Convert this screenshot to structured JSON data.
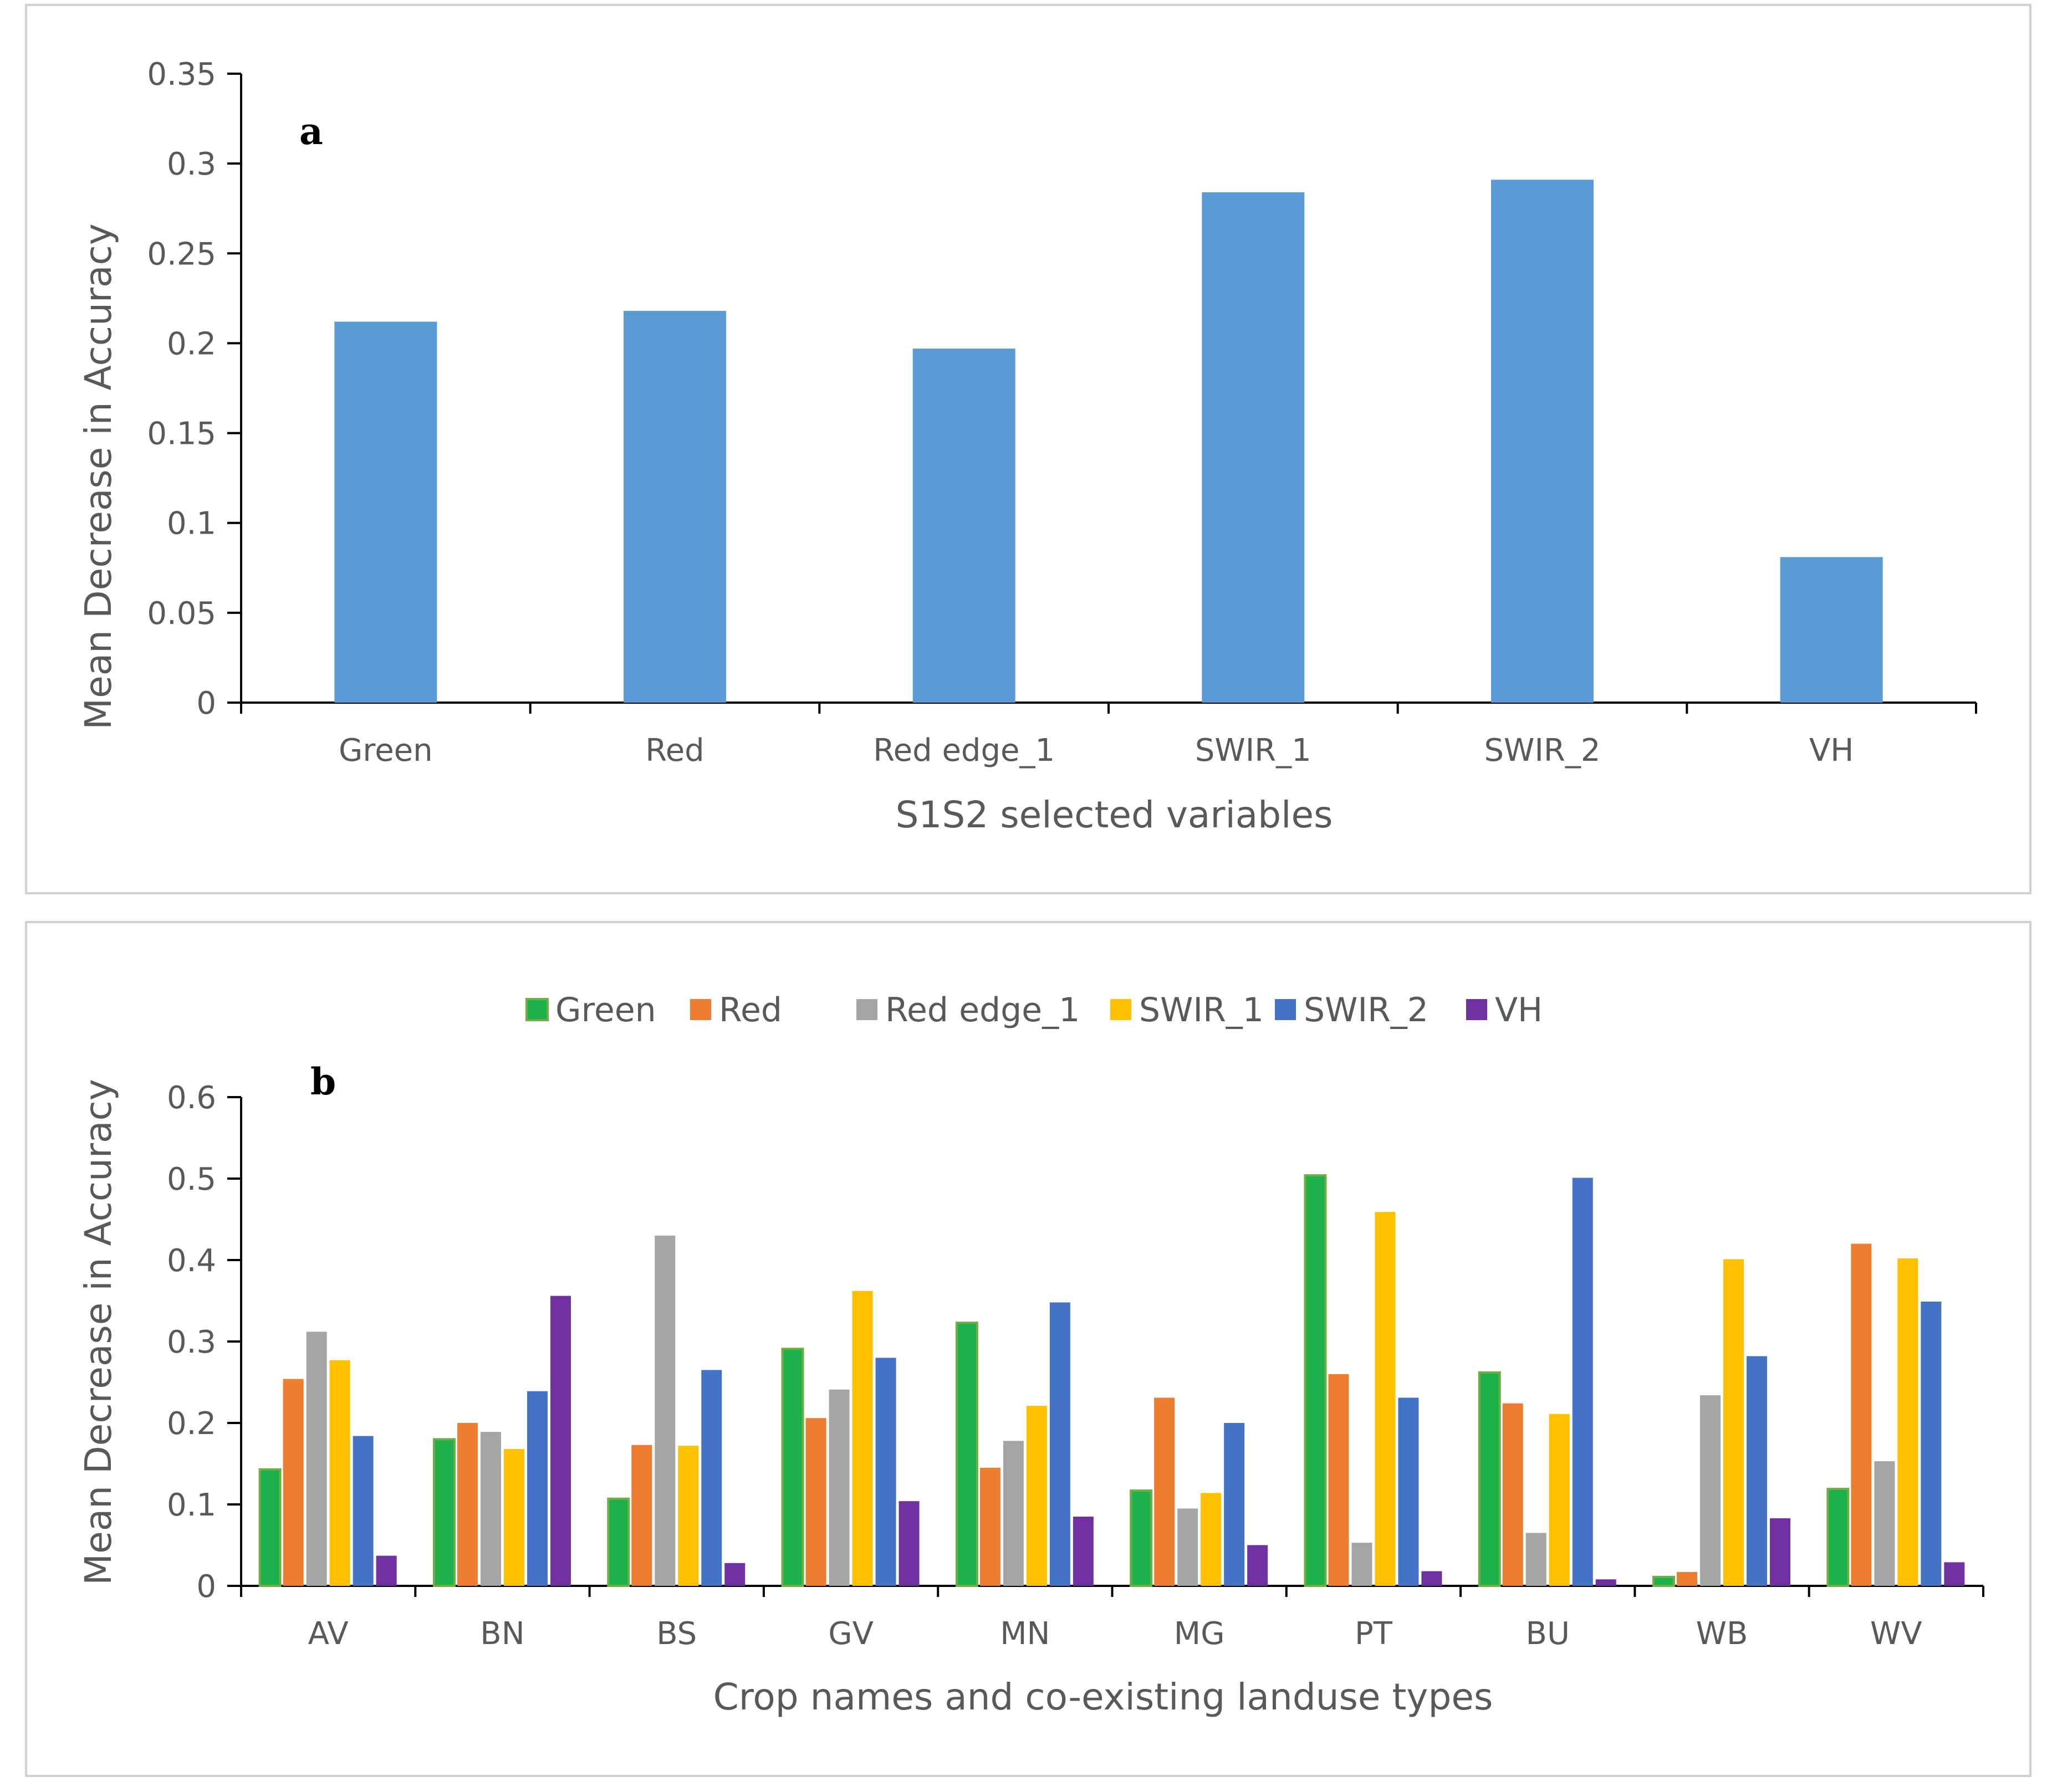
{
  "chart_data": [
    {
      "type": "bar",
      "panel_label": "a",
      "categories": [
        "Green",
        "Red",
        "Red edge_1",
        "SWIR_1",
        "SWIR_2",
        "VH"
      ],
      "values": [
        0.212,
        0.218,
        0.197,
        0.284,
        0.291,
        0.081
      ],
      "xlabel": "S1S2 selected variables",
      "ylabel": "Mean Decrease in Accuracy",
      "ylim": [
        0,
        0.35
      ],
      "yticks": [
        "0",
        "0.05",
        "0.1",
        "0.15",
        "0.2",
        "0.25",
        "0.3",
        "0.35"
      ],
      "color": "#5b9bd5"
    },
    {
      "type": "bar",
      "panel_label": "b",
      "categories": [
        "AV",
        "BN",
        "BS",
        "GV",
        "MN",
        "MG",
        "PT",
        "BU",
        "WB",
        "WV"
      ],
      "series": [
        {
          "name": "Green",
          "color": "#1db14b",
          "values": [
            0.143,
            0.18,
            0.107,
            0.291,
            0.323,
            0.117,
            0.504,
            0.262,
            0.011,
            0.119
          ]
        },
        {
          "name": "Red",
          "color": "#ed7d31",
          "values": [
            0.254,
            0.2,
            0.173,
            0.206,
            0.145,
            0.231,
            0.26,
            0.224,
            0.017,
            0.42
          ]
        },
        {
          "name": "Red edge_1",
          "color": "#a5a5a5",
          "values": [
            0.312,
            0.189,
            0.43,
            0.241,
            0.178,
            0.095,
            0.053,
            0.065,
            0.234,
            0.153
          ]
        },
        {
          "name": "SWIR_1",
          "color": "#ffc000",
          "values": [
            0.277,
            0.168,
            0.172,
            0.362,
            0.221,
            0.114,
            0.459,
            0.211,
            0.401,
            0.402
          ]
        },
        {
          "name": "SWIR_2",
          "color": "#4472c4",
          "values": [
            0.184,
            0.239,
            0.265,
            0.28,
            0.348,
            0.2,
            0.231,
            0.501,
            0.282,
            0.349
          ]
        },
        {
          "name": "VH",
          "color": "#7030a0",
          "values": [
            0.037,
            0.356,
            0.028,
            0.104,
            0.085,
            0.05,
            0.018,
            0.008,
            0.083,
            0.029
          ]
        }
      ],
      "xlabel": "Crop names and co-existing landuse types",
      "ylabel": "Mean Decrease in Accuracy",
      "ylim": [
        0,
        0.6
      ],
      "yticks": [
        "0",
        "0.1",
        "0.2",
        "0.3",
        "0.4",
        "0.5",
        "0.6"
      ],
      "legend_position": "top-center"
    }
  ]
}
